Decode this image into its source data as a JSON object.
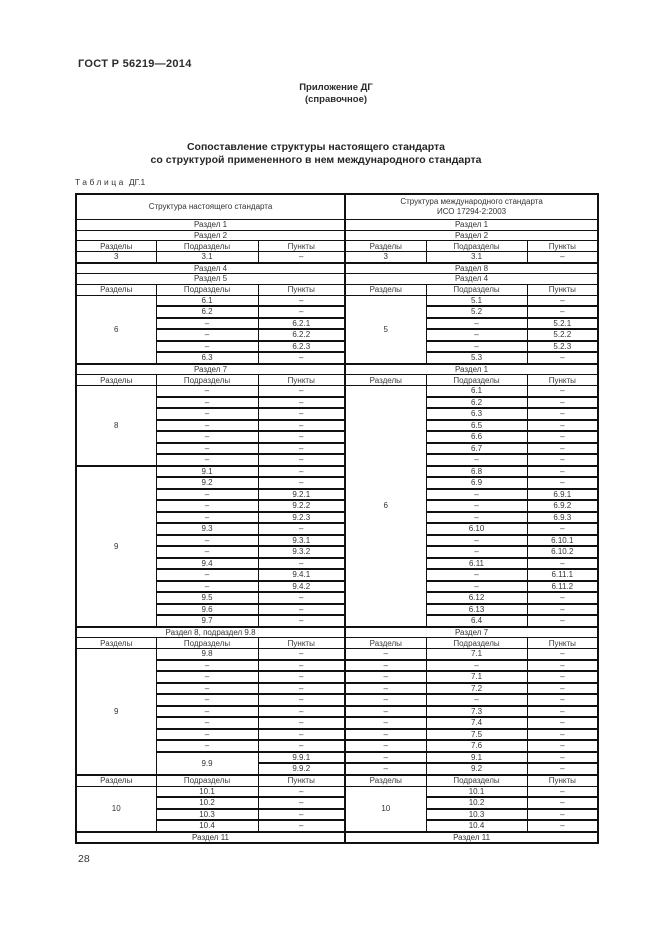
{
  "page": {
    "standard_code": "ГОСТ Р 56219—2014",
    "appendix": {
      "line1": "Приложение ДГ",
      "line2": "(справочное)"
    },
    "title": {
      "line1": "Сопоставление структуры настоящего стандарта",
      "line2": "со структурой примененного в нем международного стандарта"
    },
    "table_label": {
      "word": "Таблица",
      "number": "ДГ.1"
    },
    "page_number": "28"
  },
  "table": {
    "head": {
      "left": "Структура настоящего стандарта",
      "right_line1": "Структура международного стандарта",
      "right_line2": "ИСО 17294-2:2003"
    },
    "col_headers": [
      "Разделы",
      "Подразделы",
      "Пункты"
    ],
    "rows": [
      {
        "t": "span",
        "l": "Раздел 1",
        "r": "Раздел 1"
      },
      {
        "t": "span",
        "l": "Раздел 2",
        "r": "Раздел 2"
      },
      {
        "t": "cols"
      },
      {
        "t": "d",
        "l": [
          "3",
          "3.1",
          "–"
        ],
        "r": [
          "3",
          "3.1",
          "–"
        ]
      },
      {
        "t": "span",
        "l": "Раздел 4",
        "r": "Раздел 8"
      },
      {
        "t": "span",
        "l": "Раздел 5",
        "r": "Раздел 4"
      },
      {
        "t": "cols"
      },
      {
        "t": "d",
        "l": [
          {
            "v": "6",
            "rs": 6
          },
          "6.1",
          "–"
        ],
        "r": [
          {
            "v": "5",
            "rs": 6
          },
          "5.1",
          "–"
        ]
      },
      {
        "t": "d",
        "l": [
          null,
          "6.2",
          "–"
        ],
        "r": [
          null,
          "5.2",
          "–"
        ]
      },
      {
        "t": "d",
        "l": [
          null,
          "–",
          "6.2.1"
        ],
        "r": [
          null,
          "–",
          "5.2.1"
        ]
      },
      {
        "t": "d",
        "l": [
          null,
          "–",
          "6.2.2"
        ],
        "r": [
          null,
          "–",
          "5.2.2"
        ]
      },
      {
        "t": "d",
        "l": [
          null,
          "–",
          "6.2.3"
        ],
        "r": [
          null,
          "–",
          "5.2.3"
        ]
      },
      {
        "t": "d",
        "l": [
          null,
          "6.3",
          "–"
        ],
        "r": [
          null,
          "5.3",
          "–"
        ]
      },
      {
        "t": "span",
        "l": "Раздел 7",
        "r": "Раздел 1"
      },
      {
        "t": "cols"
      },
      {
        "t": "d",
        "l": [
          {
            "v": "8",
            "rs": 7
          },
          "–",
          "–"
        ],
        "r": [
          {
            "v": "6",
            "rs": 21
          },
          "6.1",
          "–"
        ]
      },
      {
        "t": "d",
        "l": [
          null,
          "–",
          "–"
        ],
        "r": [
          null,
          "6.2",
          "–"
        ]
      },
      {
        "t": "d",
        "l": [
          null,
          "–",
          "–"
        ],
        "r": [
          null,
          "6.3",
          "–"
        ]
      },
      {
        "t": "d",
        "l": [
          null,
          "–",
          "–"
        ],
        "r": [
          null,
          "6.5",
          "–"
        ]
      },
      {
        "t": "d",
        "l": [
          null,
          "–",
          "–"
        ],
        "r": [
          null,
          "6.6",
          "–"
        ]
      },
      {
        "t": "d",
        "l": [
          null,
          "–",
          "–"
        ],
        "r": [
          null,
          "6.7",
          "–"
        ]
      },
      {
        "t": "d",
        "l": [
          null,
          "–",
          "–"
        ],
        "r": [
          null,
          "–",
          "–"
        ]
      },
      {
        "t": "d",
        "l": [
          {
            "v": "9",
            "rs": 14
          },
          "9.1",
          "–"
        ],
        "r": [
          null,
          "6.8",
          "–"
        ]
      },
      {
        "t": "d",
        "l": [
          null,
          "9.2",
          "–"
        ],
        "r": [
          null,
          "6.9",
          "–"
        ]
      },
      {
        "t": "d",
        "l": [
          null,
          "–",
          "9.2.1"
        ],
        "r": [
          null,
          "–",
          "6.9.1"
        ]
      },
      {
        "t": "d",
        "l": [
          null,
          "–",
          "9.2.2"
        ],
        "r": [
          null,
          "–",
          "6.9.2"
        ]
      },
      {
        "t": "d",
        "l": [
          null,
          "–",
          "9.2.3"
        ],
        "r": [
          null,
          "–",
          "6.9.3"
        ]
      },
      {
        "t": "d",
        "l": [
          null,
          "9.3",
          "–"
        ],
        "r": [
          null,
          "6.10",
          "–"
        ]
      },
      {
        "t": "d",
        "l": [
          null,
          "–",
          "9.3.1"
        ],
        "r": [
          null,
          "–",
          "6.10.1"
        ]
      },
      {
        "t": "d",
        "l": [
          null,
          "–",
          "9.3.2"
        ],
        "r": [
          null,
          "–",
          "6.10.2"
        ]
      },
      {
        "t": "d",
        "l": [
          null,
          "9.4",
          "–"
        ],
        "r": [
          null,
          "6.11",
          "–"
        ]
      },
      {
        "t": "d",
        "l": [
          null,
          "–",
          "9.4.1"
        ],
        "r": [
          null,
          "–",
          "6.11.1"
        ]
      },
      {
        "t": "d",
        "l": [
          null,
          "–",
          "9.4.2"
        ],
        "r": [
          null,
          "–",
          "6.11.2"
        ]
      },
      {
        "t": "d",
        "l": [
          null,
          "9.5",
          "–"
        ],
        "r": [
          null,
          "6.12",
          "–"
        ]
      },
      {
        "t": "d",
        "l": [
          null,
          "9.6",
          "–"
        ],
        "r": [
          null,
          "6.13",
          "–"
        ]
      },
      {
        "t": "d",
        "l": [
          null,
          "9.7",
          "–"
        ],
        "r": [
          null,
          "6.4",
          "–"
        ]
      },
      {
        "t": "span",
        "l": "Раздел 8, подраздел 9.8",
        "r": "Раздел 7"
      },
      {
        "t": "cols"
      },
      {
        "t": "d",
        "l": [
          {
            "v": "9",
            "rs": 11
          },
          "9.8",
          "–"
        ],
        "r": [
          "–",
          "7.1",
          "–"
        ]
      },
      {
        "t": "d",
        "l": [
          null,
          "–",
          "–"
        ],
        "r": [
          "–",
          "–",
          "–"
        ]
      },
      {
        "t": "d",
        "l": [
          null,
          "–",
          "–"
        ],
        "r": [
          "–",
          "7.1",
          "–"
        ]
      },
      {
        "t": "d",
        "l": [
          null,
          "–",
          "–"
        ],
        "r": [
          "–",
          "7.2",
          "–"
        ]
      },
      {
        "t": "d",
        "l": [
          null,
          "–",
          "–"
        ],
        "r": [
          "–",
          "–",
          "–"
        ]
      },
      {
        "t": "d",
        "l": [
          null,
          "–",
          "–"
        ],
        "r": [
          "–",
          "7.3",
          "–"
        ]
      },
      {
        "t": "d",
        "l": [
          null,
          "–",
          "–"
        ],
        "r": [
          "–",
          "7.4",
          "–"
        ]
      },
      {
        "t": "d",
        "l": [
          null,
          "–",
          "–"
        ],
        "r": [
          "–",
          "7.5",
          "–"
        ]
      },
      {
        "t": "d",
        "l": [
          null,
          "–",
          "–"
        ],
        "r": [
          "–",
          "7.6",
          "–"
        ]
      },
      {
        "t": "d",
        "l": [
          null,
          {
            "v": "9.9",
            "rs": 2
          },
          "9.9.1"
        ],
        "r": [
          "–",
          "9.1",
          "–"
        ]
      },
      {
        "t": "d",
        "l": [
          null,
          null,
          "9.9.2"
        ],
        "r": [
          "–",
          "9.2",
          "–"
        ]
      },
      {
        "t": "cols"
      },
      {
        "t": "d",
        "l": [
          {
            "v": "10",
            "rs": 4
          },
          "10.1",
          "–"
        ],
        "r": [
          {
            "v": "10",
            "rs": 4
          },
          "10.1",
          "–"
        ]
      },
      {
        "t": "d",
        "l": [
          null,
          "10.2",
          "–"
        ],
        "r": [
          null,
          "10.2",
          "–"
        ]
      },
      {
        "t": "d",
        "l": [
          null,
          "10.3",
          "–"
        ],
        "r": [
          null,
          "10.3",
          "–"
        ]
      },
      {
        "t": "d",
        "l": [
          null,
          "10.4",
          "–"
        ],
        "r": [
          null,
          "10.4",
          "–"
        ]
      },
      {
        "t": "span",
        "l": "Раздел 11",
        "r": "Раздел 11"
      }
    ]
  }
}
